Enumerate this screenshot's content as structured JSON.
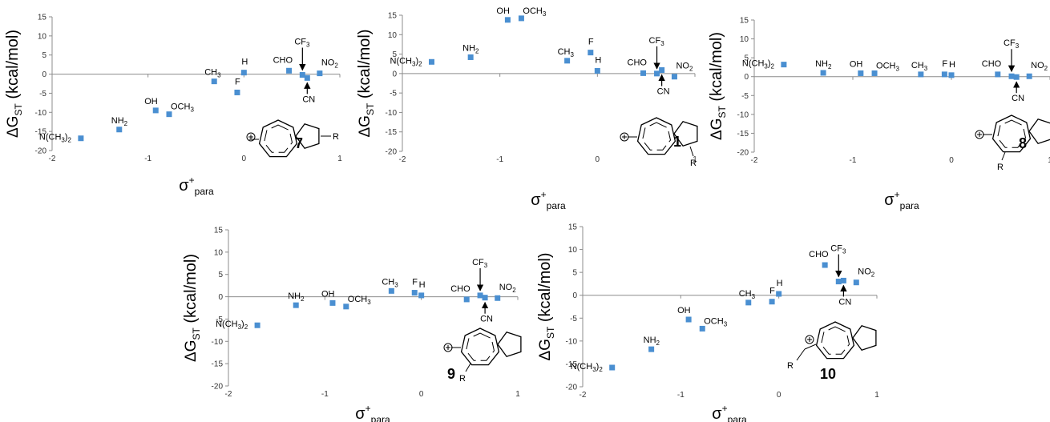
{
  "colors": {
    "marker": "#4a8fd1",
    "axis": "#8c8c8c",
    "text": "#000000"
  },
  "chart_data": [
    {
      "type": "scatter",
      "compound_label": "7",
      "ylabel": {
        "main": "ΔG",
        "sub": "ST",
        "rest": " (kcal/mol)"
      },
      "xlabel": {
        "main": "σ",
        "sup": "+",
        "sub": "para"
      },
      "xlim": [
        -2,
        1
      ],
      "ylim": [
        -20,
        15
      ],
      "x_ticks": [
        -2,
        -1,
        0,
        1
      ],
      "y_ticks": [
        15,
        10,
        5,
        0,
        -5,
        -10,
        -15,
        -20
      ],
      "points": [
        {
          "label": "N(CH3)2",
          "x": -1.7,
          "y": -16.8
        },
        {
          "label": "NH2",
          "x": -1.3,
          "y": -14.5
        },
        {
          "label": "OH",
          "x": -0.92,
          "y": -9.5
        },
        {
          "label": "OCH3",
          "x": -0.78,
          "y": -10.5
        },
        {
          "label": "CH3",
          "x": -0.31,
          "y": -1.9
        },
        {
          "label": "F",
          "x": -0.07,
          "y": -4.8
        },
        {
          "label": "H",
          "x": 0.0,
          "y": 0.4
        },
        {
          "label": "CHO",
          "x": 0.47,
          "y": 0.9
        },
        {
          "label": "CF3",
          "x": 0.61,
          "y": -0.2
        },
        {
          "label": "CN",
          "x": 0.66,
          "y": -1.0
        },
        {
          "label": "NO2",
          "x": 0.79,
          "y": 0.2
        }
      ]
    },
    {
      "type": "scatter",
      "compound_label": "1",
      "ylabel": {
        "main": "ΔG",
        "sub": "ST",
        "rest": " (kcal/mol)"
      },
      "xlabel": {
        "main": "σ",
        "sup": "+",
        "sub": "para"
      },
      "xlim": [
        -2,
        1
      ],
      "ylim": [
        -20,
        15
      ],
      "x_ticks": [
        -2,
        -1,
        0,
        1
      ],
      "y_ticks": [
        15,
        10,
        5,
        0,
        -5,
        -10,
        -15,
        -20
      ],
      "points": [
        {
          "label": "N(CH3)2",
          "x": -1.7,
          "y": 3.0
        },
        {
          "label": "NH2",
          "x": -1.3,
          "y": 4.2
        },
        {
          "label": "OH",
          "x": -0.92,
          "y": 13.8
        },
        {
          "label": "OCH3",
          "x": -0.78,
          "y": 14.2
        },
        {
          "label": "CH3",
          "x": -0.31,
          "y": 3.3
        },
        {
          "label": "F",
          "x": -0.07,
          "y": 5.4
        },
        {
          "label": "H",
          "x": 0.0,
          "y": 0.7
        },
        {
          "label": "CHO",
          "x": 0.47,
          "y": 0.1
        },
        {
          "label": "CF3",
          "x": 0.61,
          "y": 0.0
        },
        {
          "label": "CN",
          "x": 0.66,
          "y": 0.9
        },
        {
          "label": "NO2",
          "x": 0.79,
          "y": -0.8
        }
      ]
    },
    {
      "type": "scatter",
      "compound_label": "8",
      "ylabel": {
        "main": "ΔG",
        "sub": "ST",
        "rest": " (kcal/mol)"
      },
      "xlabel": {
        "main": "σ",
        "sup": "+",
        "sub": "para"
      },
      "xlim": [
        -2,
        1
      ],
      "ylim": [
        -20,
        15
      ],
      "x_ticks": [
        -2,
        -1,
        0,
        1
      ],
      "y_ticks": [
        15,
        10,
        5,
        0,
        -5,
        -10,
        -15,
        -20
      ],
      "points": [
        {
          "label": "N(CH3)2",
          "x": -1.7,
          "y": 3.2
        },
        {
          "label": "NH2",
          "x": -1.3,
          "y": 1.0
        },
        {
          "label": "OH",
          "x": -0.92,
          "y": 0.9
        },
        {
          "label": "OCH3",
          "x": -0.78,
          "y": 0.9
        },
        {
          "label": "CH3",
          "x": -0.31,
          "y": 0.6
        },
        {
          "label": "F",
          "x": -0.07,
          "y": 0.6
        },
        {
          "label": "H",
          "x": 0.0,
          "y": 0.4
        },
        {
          "label": "CHO",
          "x": 0.47,
          "y": 0.6
        },
        {
          "label": "CF3",
          "x": 0.61,
          "y": 0.1
        },
        {
          "label": "CN",
          "x": 0.66,
          "y": -0.1
        },
        {
          "label": "NO2",
          "x": 0.79,
          "y": 0.1
        }
      ]
    },
    {
      "type": "scatter",
      "compound_label": "9",
      "ylabel": {
        "main": "ΔG",
        "sub": "ST",
        "rest": " (kcal/mol)"
      },
      "xlabel": {
        "main": "σ",
        "sup": "+",
        "sub": "para"
      },
      "xlim": [
        -2,
        1
      ],
      "ylim": [
        -20,
        15
      ],
      "x_ticks": [
        -2,
        -1,
        0,
        1
      ],
      "y_ticks": [
        15,
        10,
        5,
        0,
        -5,
        -10,
        -15,
        -20
      ],
      "points": [
        {
          "label": "N(CH3)2",
          "x": -1.7,
          "y": -6.4
        },
        {
          "label": "NH2",
          "x": -1.3,
          "y": -1.9
        },
        {
          "label": "OH",
          "x": -0.92,
          "y": -1.4
        },
        {
          "label": "OCH3",
          "x": -0.78,
          "y": -2.2
        },
        {
          "label": "CH3",
          "x": -0.31,
          "y": 1.3
        },
        {
          "label": "F",
          "x": -0.07,
          "y": 0.9
        },
        {
          "label": "H",
          "x": 0.0,
          "y": 0.3
        },
        {
          "label": "CHO",
          "x": 0.47,
          "y": -0.6
        },
        {
          "label": "CF3",
          "x": 0.61,
          "y": 0.3
        },
        {
          "label": "CN",
          "x": 0.66,
          "y": -0.2
        },
        {
          "label": "NO2",
          "x": 0.79,
          "y": -0.3
        }
      ]
    },
    {
      "type": "scatter",
      "compound_label": "10",
      "ylabel": {
        "main": "ΔG",
        "sub": "ST",
        "rest": " (kcal/mol)"
      },
      "xlabel": {
        "main": "σ",
        "sup": "+",
        "sub": "para"
      },
      "xlim": [
        -2,
        1
      ],
      "ylim": [
        -20,
        15
      ],
      "x_ticks": [
        -2,
        -1,
        0,
        1
      ],
      "y_ticks": [
        15,
        10,
        5,
        0,
        -5,
        -10,
        -15,
        -20
      ],
      "points": [
        {
          "label": "N(CH3)2",
          "x": -1.7,
          "y": -15.8
        },
        {
          "label": "NH2",
          "x": -1.3,
          "y": -11.8
        },
        {
          "label": "OH",
          "x": -0.92,
          "y": -5.3
        },
        {
          "label": "OCH3",
          "x": -0.78,
          "y": -7.3
        },
        {
          "label": "CH3",
          "x": -0.31,
          "y": -1.6
        },
        {
          "label": "F",
          "x": -0.07,
          "y": -1.4
        },
        {
          "label": "H",
          "x": 0.0,
          "y": 0.3
        },
        {
          "label": "CHO",
          "x": 0.47,
          "y": 6.6
        },
        {
          "label": "CF3",
          "x": 0.61,
          "y": 3.0
        },
        {
          "label": "CN",
          "x": 0.66,
          "y": 3.2
        },
        {
          "label": "NO2",
          "x": 0.79,
          "y": 2.8
        }
      ]
    }
  ]
}
